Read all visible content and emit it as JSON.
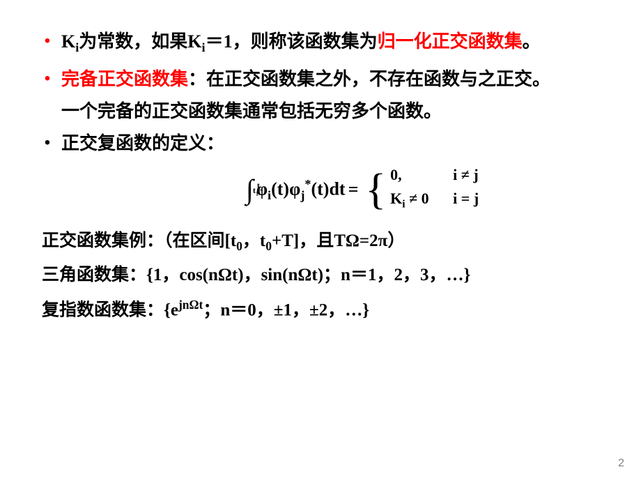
{
  "colors": {
    "accent": "#ff0000",
    "text": "#000000",
    "page_num": "#808080",
    "background": "#ffffff"
  },
  "bullets": {
    "b1": {
      "pre": "K",
      "sub1": "i",
      "mid1": "为常数，如果K",
      "sub2": "i",
      "mid2": "＝1，则称该函数集为",
      "term": "归一化正交函数集",
      "end": "。"
    },
    "b2": {
      "term": "完备正交函数集",
      "colon": "：",
      "rest": "在正交函数集之外，不存在函数与之正交。"
    },
    "b2_line2": "一个完备的正交函数集通常包括无穷多个函数。",
    "b3": "正交复函数的定义："
  },
  "equation": {
    "int_upper": "t",
    "int_upper_sub": "2",
    "int_lower": "t",
    "int_lower_sub": "1",
    "phi1": "φ",
    "phi1_sub": "i",
    "phi2": "φ",
    "phi2_sub": "j",
    "phi2_sup": "*",
    "arg_close": "(t)dt",
    "arg_open": "(t)",
    "equals": " = ",
    "case1_left": "0,",
    "case1_right": "i ≠ j",
    "case2_left_k": "K",
    "case2_left_sub": "i",
    "case2_left_rest": " ≠ 0",
    "case2_right": "i = j"
  },
  "lower": {
    "l1_a": "正交函数集例：（在区间[t",
    "l1_sub1": "0",
    "l1_b": "，t",
    "l1_sub2": "0",
    "l1_c": "+T]，且TΩ=2π）",
    "l2": "三角函数集：{1，cos(nΩt)，sin(nΩt)；n＝1，2，3，…}",
    "l3_a": "复指数函数集：{e",
    "l3_sup": "jnΩt",
    "l3_b": "；n＝0，±1，±2，…}"
  },
  "page_number": "2"
}
